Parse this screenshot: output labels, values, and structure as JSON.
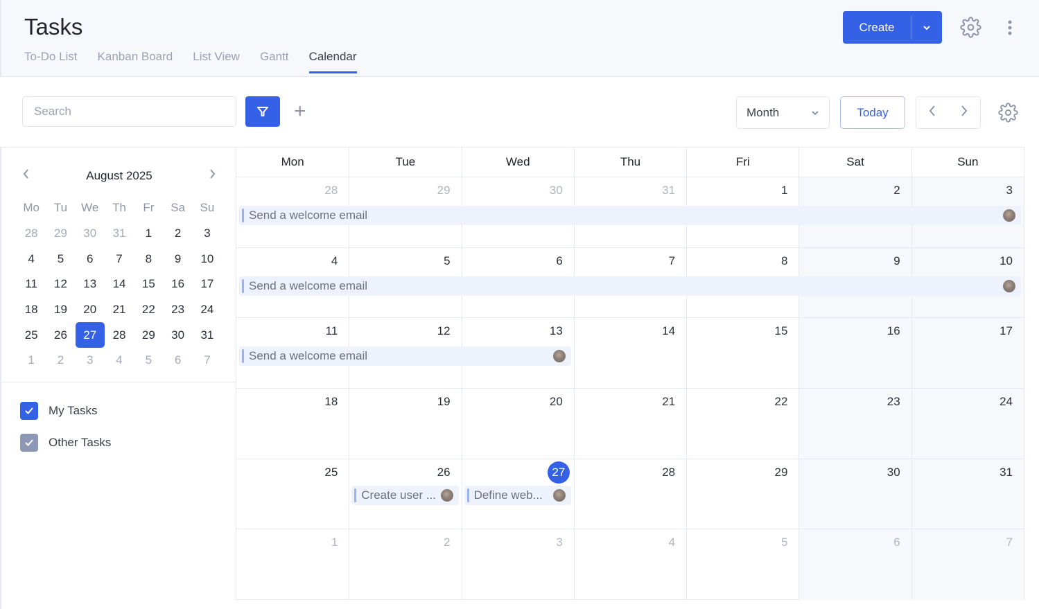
{
  "header": {
    "title": "Tasks",
    "tabs": [
      "To-Do List",
      "Kanban Board",
      "List View",
      "Gantt",
      "Calendar"
    ],
    "active_tab": "Calendar",
    "create_label": "Create"
  },
  "toolbar": {
    "search_placeholder": "Search",
    "view_select": "Month",
    "today_label": "Today"
  },
  "mini_calendar": {
    "title": "August 2025",
    "dow": [
      "Mo",
      "Tu",
      "We",
      "Th",
      "Fr",
      "Sa",
      "Su"
    ],
    "weeks": [
      [
        "28",
        "29",
        "30",
        "31",
        "1",
        "2",
        "3"
      ],
      [
        "4",
        "5",
        "6",
        "7",
        "8",
        "9",
        "10"
      ],
      [
        "11",
        "12",
        "13",
        "14",
        "15",
        "16",
        "17"
      ],
      [
        "18",
        "19",
        "20",
        "21",
        "22",
        "23",
        "24"
      ],
      [
        "25",
        "26",
        "27",
        "28",
        "29",
        "30",
        "31"
      ],
      [
        "1",
        "2",
        "3",
        "4",
        "5",
        "6",
        "7"
      ]
    ],
    "selected": "27"
  },
  "filters": [
    {
      "label": "My Tasks",
      "checked": true,
      "color": "#3561e6"
    },
    {
      "label": "Other Tasks",
      "checked": true,
      "color": "#8e97b5"
    }
  ],
  "calendar": {
    "dow": [
      "Mon",
      "Tue",
      "Wed",
      "Thu",
      "Fri",
      "Sat",
      "Sun"
    ],
    "weeks": [
      {
        "days": [
          "28",
          "29",
          "30",
          "31",
          "1",
          "2",
          "3"
        ],
        "muted": [
          0,
          1,
          2,
          3
        ],
        "events": [
          {
            "title": "Send a welcome email",
            "start": 0,
            "span": 7
          }
        ]
      },
      {
        "days": [
          "4",
          "5",
          "6",
          "7",
          "8",
          "9",
          "10"
        ],
        "muted": [],
        "events": [
          {
            "title": "Send a welcome email",
            "start": 0,
            "span": 7
          }
        ]
      },
      {
        "days": [
          "11",
          "12",
          "13",
          "14",
          "15",
          "16",
          "17"
        ],
        "muted": [],
        "events": [
          {
            "title": "Send a welcome email",
            "start": 0,
            "span": 3
          }
        ]
      },
      {
        "days": [
          "18",
          "19",
          "20",
          "21",
          "22",
          "23",
          "24"
        ],
        "muted": [],
        "events": []
      },
      {
        "days": [
          "25",
          "26",
          "27",
          "28",
          "29",
          "30",
          "31"
        ],
        "muted": [],
        "today": 2,
        "events": [
          {
            "title": "Create user ...",
            "start": 1,
            "span": 1
          },
          {
            "title": "Define web...",
            "start": 2,
            "span": 1
          }
        ]
      },
      {
        "days": [
          "1",
          "2",
          "3",
          "4",
          "5",
          "6",
          "7"
        ],
        "muted": [
          0,
          1,
          2,
          3,
          4,
          5,
          6
        ],
        "events": []
      }
    ]
  },
  "colors": {
    "accent": "#3561e6",
    "weekend_bg": "#f7f8fc",
    "event_bg": "#eef2fd"
  }
}
